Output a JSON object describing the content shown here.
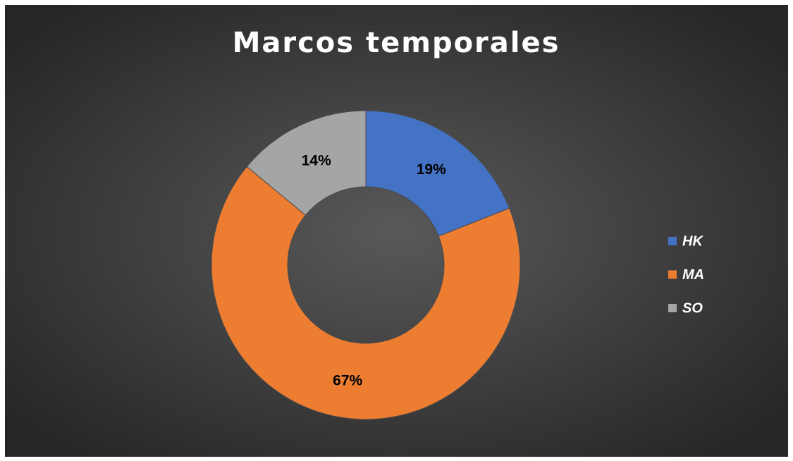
{
  "chart_data": {
    "type": "donut",
    "title": "Marcos temporales",
    "categories": [
      "HK",
      "MA",
      "SO"
    ],
    "values": [
      19,
      67,
      14
    ],
    "value_labels": [
      "19%",
      "67%",
      "14%"
    ],
    "colors": [
      "#4472c4",
      "#ed7d31",
      "#a5a5a5"
    ],
    "legend": "right"
  }
}
